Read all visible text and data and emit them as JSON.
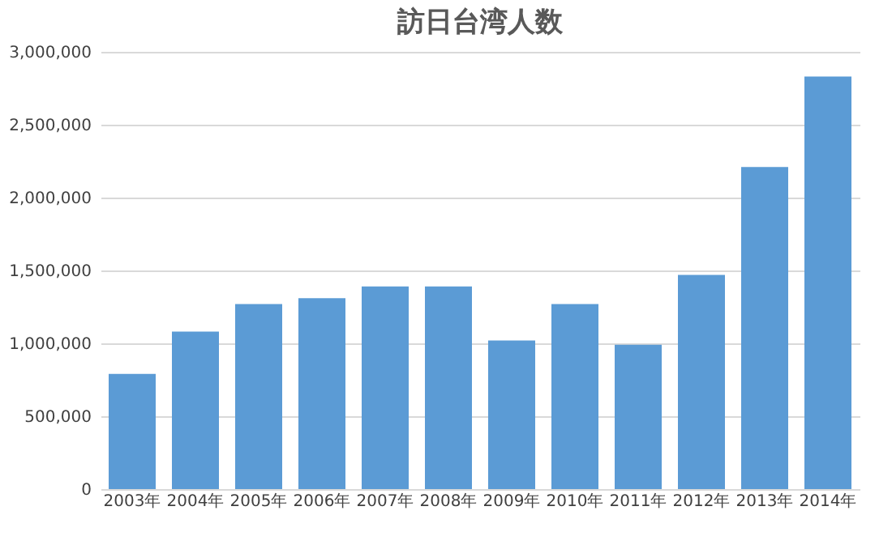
{
  "chart_data": {
    "type": "bar",
    "title": "訪日台湾人数",
    "categories": [
      "2003年",
      "2004年",
      "2005年",
      "2006年",
      "2007年",
      "2008年",
      "2009年",
      "2010年",
      "2011年",
      "2012年",
      "2013年",
      "2014年"
    ],
    "values": [
      790000,
      1080000,
      1270000,
      1310000,
      1390000,
      1390000,
      1020000,
      1270000,
      990000,
      1470000,
      2210000,
      2830000
    ],
    "color": "#5b9bd5",
    "ylim": [
      0,
      3000000
    ],
    "yticks": [
      {
        "value": 0,
        "label": "0"
      },
      {
        "value": 500000,
        "label": "500,000"
      },
      {
        "value": 1000000,
        "label": "1,000,000"
      },
      {
        "value": 1500000,
        "label": "1,500,000"
      },
      {
        "value": 2000000,
        "label": "2,000,000"
      },
      {
        "value": 2500000,
        "label": "2,500,000"
      },
      {
        "value": 3000000,
        "label": "3,000,000"
      }
    ],
    "grid": "y"
  }
}
